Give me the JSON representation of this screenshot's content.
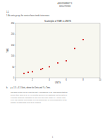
{
  "chart_data": {
    "type": "scatter",
    "title": "Scatterplot of TIME vs UNITS",
    "x_label": "UNITS",
    "y_label": "TIME",
    "x": [
      1,
      1.5,
      2,
      3,
      3.2,
      4,
      5,
      6,
      7,
      8
    ],
    "values": [
      20,
      25,
      28,
      38,
      42,
      50,
      68,
      78,
      135,
      175
    ],
    "color": "#cc0000",
    "xlim": [
      0,
      10
    ],
    "ylim": [
      0,
      250
    ],
    "xticks": [
      0,
      2,
      4,
      6,
      8,
      10
    ],
    "yticks": [
      0,
      50,
      100,
      150,
      200,
      250
    ],
    "grid": false,
    "annotations": [
      "ASSIGNMENT 5",
      "SOLUTIONS",
      "1.1",
      "1.   As units go up, the service hours tends to increase.",
      "b.",
      "y = 1.3 + 4.5 Units, where for Units and Y = Time.",
      "The slope of the line is 1.5 for the first Y increases by 1.57. This implies that the\nservice time goes up by 1.1 in minutes whenever an additional unit needs to be\nexpected. Different regression is valid over the entire range of X values, from\nevery job requires a fixed base of 1.37 minutes due up need irrespective of the\nnumber of units which need to be repaired.",
      "1"
    ]
  }
}
